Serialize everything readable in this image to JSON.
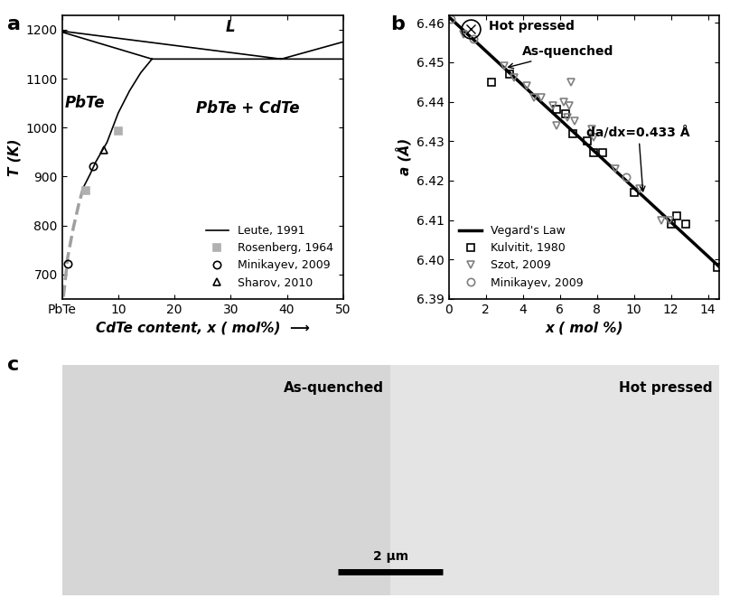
{
  "chart_data": [
    {
      "panel": "a",
      "type": "line",
      "xlabel": "CdTe content, x ( mol%)  ⟶",
      "ylabel": "T (K)",
      "xlim": [
        0,
        50
      ],
      "ylim": [
        650,
        1230
      ],
      "xticks": [
        {
          "value": 0,
          "label": "PbTe"
        },
        10,
        20,
        30,
        40,
        50
      ],
      "yticks": [
        700,
        800,
        900,
        1000,
        1100,
        1200
      ],
      "legend": "lower right",
      "grid": false,
      "annotations": [
        {
          "text": "L"
        },
        {
          "text": "PbTe"
        },
        {
          "text": "PbTe + CdTe"
        }
      ],
      "series": [
        {
          "name": "Leute, 1991",
          "type": "line",
          "color": "#000000",
          "line_style": "solid",
          "x": [
            0,
            39,
            50,
            null,
            0,
            16,
            50,
            null,
            16,
            14,
            12,
            10,
            8,
            6,
            5,
            3.8
          ],
          "values": [
            1197,
            1140,
            1175,
            null,
            1195,
            1140,
            1140,
            null,
            1140,
            1112,
            1075,
            1030,
            970,
            930,
            905,
            878
          ]
        },
        {
          "type": "line",
          "color": "#a0a0a0",
          "line_style": "dashed",
          "x": [
            3.8,
            3,
            2,
            1,
            0.2
          ],
          "values": [
            878,
            845,
            795,
            735,
            650
          ]
        },
        {
          "name": "Rosenberg, 1964",
          "type": "scatter",
          "color": "#b0b0b0",
          "marker": "square_filled",
          "x": [
            4.3,
            10
          ],
          "values": [
            872,
            993
          ]
        },
        {
          "name": "Minikayev, 2009",
          "type": "scatter",
          "color": "#000000",
          "marker": "circle",
          "x": [
            1,
            5.5
          ],
          "values": [
            722,
            922
          ]
        },
        {
          "name": "Sharov, 2010",
          "type": "scatter",
          "color": "#000000",
          "marker": "triangle_up",
          "x": [
            7.5
          ],
          "values": [
            955
          ]
        }
      ]
    },
    {
      "panel": "b",
      "type": "scatter",
      "xlabel": "x ( mol %)",
      "ylabel": "a (Å)",
      "xlim": [
        0,
        14.6
      ],
      "ylim": [
        6.39,
        6.462
      ],
      "xticks": [
        0,
        2,
        4,
        6,
        8,
        10,
        12,
        14
      ],
      "yticks": [
        6.39,
        {
          "value": 6.4,
          "label": "6.40"
        },
        6.41,
        6.42,
        6.43,
        6.44,
        6.45,
        6.46
      ],
      "legend": "lower left",
      "grid": false,
      "annotations": [
        {
          "text": "Hot pressed",
          "x": 1.2,
          "y": 6.4585,
          "marker": "circled"
        },
        {
          "text": "As-quenched",
          "x": 3.0,
          "y": 6.4485
        },
        {
          "text": "da/dx=0.433 Å",
          "x": 10.5,
          "y": 6.4163
        }
      ],
      "series": [
        {
          "name": "Vegard's Law",
          "type": "line",
          "color": "#000000",
          "line_style": "solid",
          "x": [
            0,
            14.7
          ],
          "values": [
            6.4615,
            6.3978
          ]
        },
        {
          "name": "Kulvitit, 1980",
          "type": "scatter",
          "color": "#000000",
          "marker": "square",
          "x": [
            2.3,
            3.3,
            5.8,
            6.3,
            6.7,
            7.5,
            7.8,
            8.3,
            10.0,
            12.0,
            12.3,
            12.8,
            14.5
          ],
          "values": [
            6.445,
            6.447,
            6.438,
            6.437,
            6.432,
            6.43,
            6.427,
            6.427,
            6.417,
            6.409,
            6.411,
            6.409,
            6.398
          ]
        },
        {
          "name": "Szot, 2009",
          "type": "scatter",
          "color": "#808080",
          "marker": "triangle_down",
          "x": [
            0.8,
            3.0,
            3.5,
            4.2,
            4.6,
            5.0,
            5.6,
            5.8,
            6.2,
            6.4,
            6.5,
            6.6,
            6.8,
            7.7,
            7.8,
            9.0,
            10.3,
            11.5,
            11.9
          ],
          "values": [
            6.457,
            6.449,
            6.446,
            6.444,
            6.441,
            6.441,
            6.439,
            6.434,
            6.44,
            6.436,
            6.439,
            6.445,
            6.435,
            6.433,
            6.431,
            6.423,
            6.418,
            6.41,
            6.41
          ]
        },
        {
          "name": "Minikayev, 2009",
          "type": "scatter",
          "color": "#808080",
          "marker": "circle",
          "x": [
            0.1,
            1.3,
            9.6
          ],
          "values": [
            6.461,
            6.456,
            6.421
          ]
        }
      ]
    },
    {
      "panel": "c",
      "type": "image",
      "labels": [
        "As-quenched",
        "Hot pressed"
      ],
      "scale_bar": "2 μm"
    }
  ]
}
